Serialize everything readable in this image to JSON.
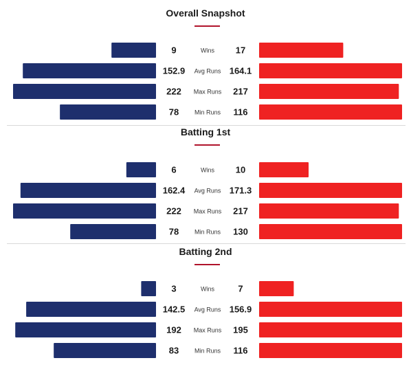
{
  "chart_data": [
    {
      "type": "bar",
      "title": "Overall Snapshot",
      "categories": [
        "Wins",
        "Avg Runs",
        "Max Runs",
        "Min Runs"
      ],
      "series": [
        {
          "values": [
            9,
            152.9,
            222,
            78
          ],
          "labels": [
            "9",
            "152.9",
            "222",
            "78"
          ],
          "color": "#1e2f6d"
        },
        {
          "values": [
            17,
            164.1,
            217,
            116
          ],
          "labels": [
            "17",
            "164.1",
            "217",
            "116"
          ],
          "color": "#ef2222"
        }
      ]
    },
    {
      "type": "bar",
      "title": "Batting 1st",
      "categories": [
        "Wins",
        "Avg Runs",
        "Max Runs",
        "Min Runs"
      ],
      "series": [
        {
          "values": [
            6,
            162.4,
            222,
            78
          ],
          "labels": [
            "6",
            "162.4",
            "222",
            "78"
          ],
          "color": "#1e2f6d"
        },
        {
          "values": [
            10,
            171.3,
            217,
            130
          ],
          "labels": [
            "10",
            "171.3",
            "217",
            "130"
          ],
          "color": "#ef2222"
        }
      ]
    },
    {
      "type": "bar",
      "title": "Batting 2nd",
      "categories": [
        "Wins",
        "Avg Runs",
        "Max Runs",
        "Min Runs"
      ],
      "series": [
        {
          "values": [
            3,
            142.5,
            192,
            83
          ],
          "labels": [
            "3",
            "142.5",
            "192",
            "83"
          ],
          "color": "#1e2f6d"
        },
        {
          "values": [
            7,
            156.9,
            195,
            116
          ],
          "labels": [
            "7",
            "156.9",
            "195",
            "116"
          ],
          "color": "#ef2222"
        }
      ]
    }
  ]
}
